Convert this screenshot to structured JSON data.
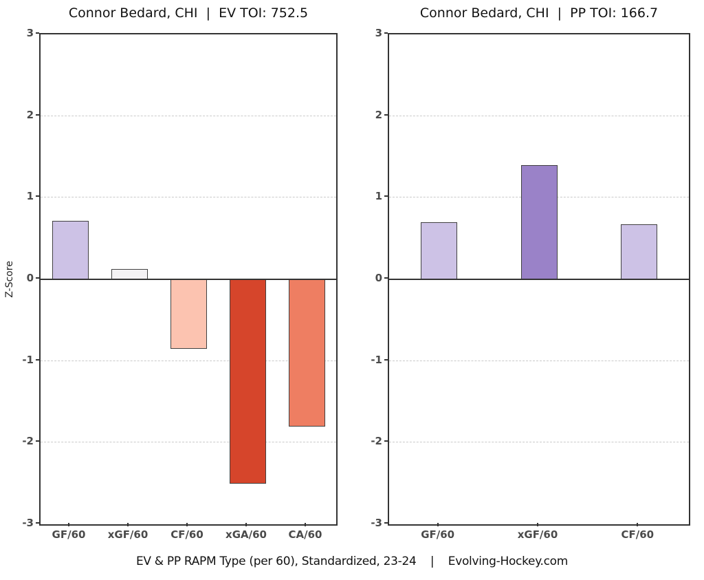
{
  "labels": {
    "ylabel": "Z-Score",
    "caption": "EV & PP RAPM Type (per 60), Standardized, 23-24    |    Evolving-Hockey.com"
  },
  "style": {
    "axis_color": "#333333",
    "grid_color": "#c9c9c9",
    "bar_border_color": "#404040",
    "tick_label_color": "#4a4a4a",
    "title_color": "#111111",
    "background": "#ffffff"
  },
  "chart_data": [
    {
      "type": "bar",
      "title": "Connor Bedard, CHI  |  EV TOI: 752.5",
      "categories": [
        "GF/60",
        "xGF/60",
        "CF/60",
        "xGA/60",
        "CA/60"
      ],
      "values": [
        0.72,
        0.13,
        -0.85,
        -2.5,
        -1.8
      ],
      "bar_colors": [
        "#cdc2e6",
        "#f4f2f4",
        "#fcc3b0",
        "#d6452b",
        "#ee7e62"
      ],
      "xlabel": "",
      "ylabel": "Z-Score",
      "ylim": [
        -3,
        3
      ],
      "yticks": [
        3,
        2,
        1,
        0,
        -1,
        -2,
        -3
      ],
      "grid": "horizontal dashed at -2, -1, 1, 2",
      "legend": "none"
    },
    {
      "type": "bar",
      "title": "Connor Bedard, CHI  |  PP TOI: 166.7",
      "categories": [
        "GF/60",
        "xGF/60",
        "CF/60"
      ],
      "values": [
        0.7,
        1.4,
        0.67
      ],
      "bar_colors": [
        "#cdc2e6",
        "#9a82c8",
        "#cdc2e6"
      ],
      "xlabel": "",
      "ylabel": "",
      "ylim": [
        -3,
        3
      ],
      "yticks": [
        3,
        2,
        1,
        0,
        -1,
        -2,
        -3
      ],
      "grid": "horizontal dashed at -2, -1, 1, 2",
      "legend": "none"
    }
  ]
}
